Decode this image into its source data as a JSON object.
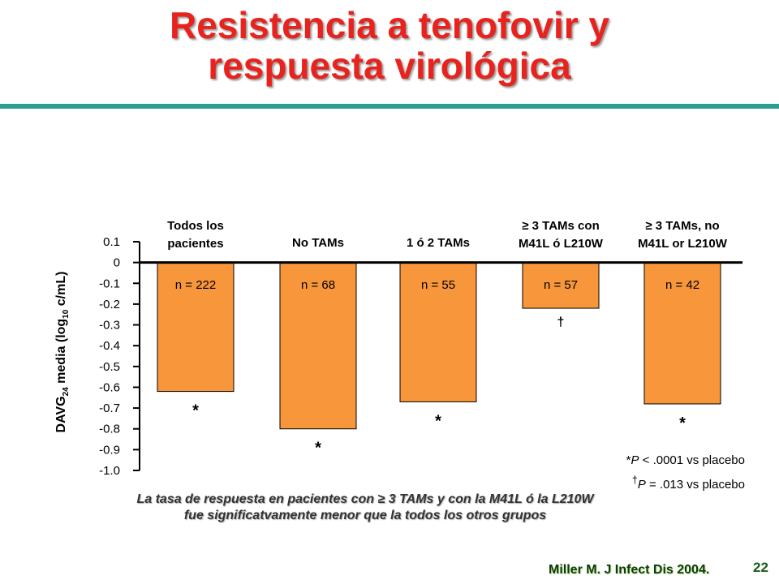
{
  "title": {
    "line1": "Resistencia a tenofovir y",
    "line2": "respuesta virológica"
  },
  "chart_data": {
    "type": "bar",
    "categories": [
      [
        "Todos los",
        "pacientes"
      ],
      [
        "No TAMs"
      ],
      [
        "1 ó 2 TAMs"
      ],
      [
        "≥ 3 TAMs con",
        "M41L ó L210W"
      ],
      [
        "≥ 3 TAMs, no",
        "M41L or L210W"
      ]
    ],
    "values": [
      -0.62,
      -0.8,
      -0.67,
      -0.22,
      -0.68
    ],
    "n_labels": [
      "n = 222",
      "n = 68",
      "n = 55",
      "n = 57",
      "n = 42"
    ],
    "significance": [
      "*",
      "*",
      "*",
      "†",
      "*"
    ],
    "ylabel": {
      "main": "DAVG",
      "sub1": "24",
      "mid": " media (log",
      "sub2": "10",
      "end": " c/mL)"
    },
    "yticks": [
      "0.1",
      "0",
      "-0.1",
      "-0.2",
      "-0.3",
      "-0.4",
      "-0.5",
      "-0.6",
      "-0.7",
      "-0.8",
      "-0.9",
      "-1.0"
    ],
    "ylim": [
      -1.0,
      0.1
    ],
    "bar_color": "#f7963a",
    "grid": false
  },
  "footnotes": {
    "p1_symbol": "*",
    "p1_p": "P",
    "p1_text": " < .0001 vs placebo",
    "p2_symbol": "†",
    "p2_p": "P",
    "p2_text": " = .013 vs placebo"
  },
  "conclusion": {
    "line1": "La tasa de respuesta en pacientes con ≥ 3 TAMs y con la M41L ó la L210W",
    "line2": "fue significatvamente menor que la todos los otros grupos"
  },
  "citation": "Miller M. J Infect Dis 2004.",
  "page_number": "22",
  "colors": {
    "title": "#e8231e",
    "accent_rule": "#2a9d8f",
    "citation": "#0b3d0b"
  }
}
